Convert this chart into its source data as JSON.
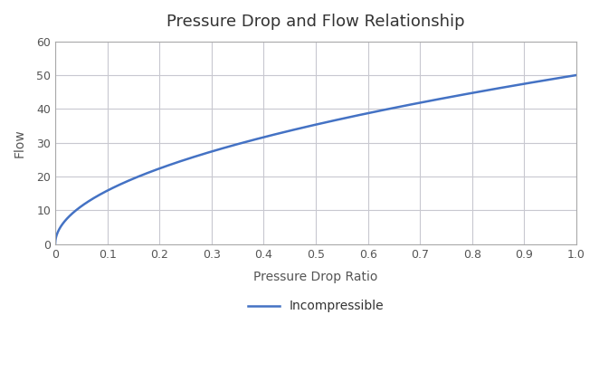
{
  "title": "Pressure Drop and Flow Relationship",
  "xlabel": "Pressure Drop Ratio",
  "ylabel": "Flow",
  "legend_label": "Incompressible",
  "xlim": [
    0,
    1.0
  ],
  "ylim": [
    0,
    60
  ],
  "xticks": [
    0.0,
    0.1,
    0.2,
    0.3,
    0.4,
    0.5,
    0.6,
    0.7,
    0.8,
    0.9,
    1.0
  ],
  "yticks": [
    0,
    10,
    20,
    30,
    40,
    50,
    60
  ],
  "line_color": "#4472C4",
  "line_width": 1.8,
  "background_color": "#FFFFFF",
  "plot_bg_color": "#FFFFFF",
  "grid_color": "#C8C8D0",
  "scale_factor": 50.0,
  "title_fontsize": 13,
  "label_fontsize": 10,
  "tick_fontsize": 9,
  "legend_fontsize": 10,
  "spine_color": "#AAAAAA"
}
